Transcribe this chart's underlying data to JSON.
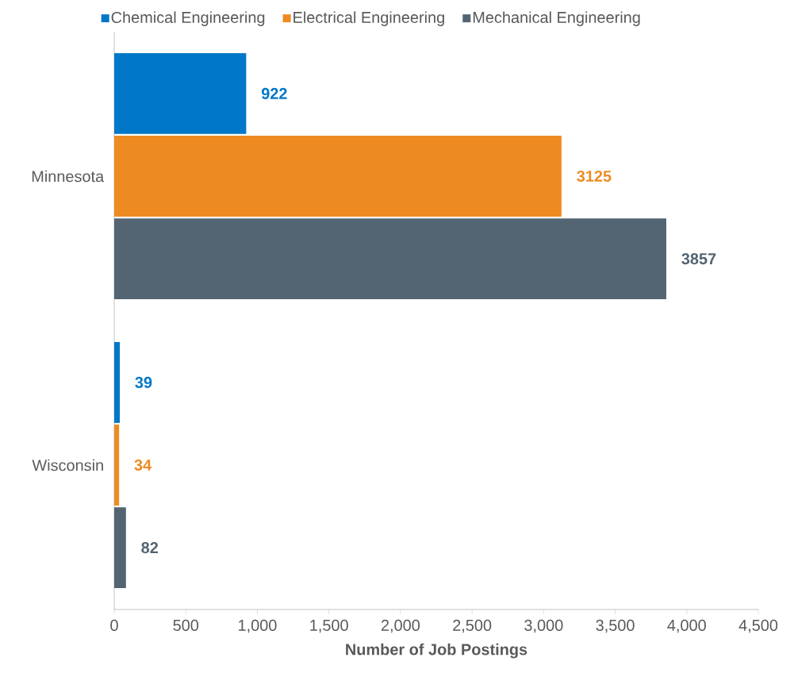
{
  "chart_data": {
    "type": "bar",
    "orientation": "horizontal",
    "xlabel": "Number of Job Postings",
    "categories": [
      "Minnesota",
      "Wisconsin"
    ],
    "series": [
      {
        "name": "Chemical Engineering",
        "color": "#0077c8",
        "values": [
          922,
          39
        ]
      },
      {
        "name": "Electrical Engineering",
        "color": "#ed8b22",
        "values": [
          3125,
          34
        ]
      },
      {
        "name": "Mechanical Engineering",
        "color": "#536472",
        "values": [
          3857,
          82
        ]
      }
    ],
    "xlim": [
      0,
      4500
    ],
    "xticks": [
      0,
      500,
      {
        "value": 1000,
        "label": "1,000"
      },
      {
        "value": 1500,
        "label": "1,500"
      },
      {
        "value": 2000,
        "label": "2,000"
      },
      {
        "value": 2500,
        "label": "2,500"
      },
      {
        "value": 3000,
        "label": "3,000"
      },
      {
        "value": 3500,
        "label": "3,500"
      },
      {
        "value": 4000,
        "label": "4,000"
      },
      {
        "value": 4500,
        "label": "4,500"
      }
    ],
    "data_labels": true,
    "legend": "top",
    "grid": false
  }
}
